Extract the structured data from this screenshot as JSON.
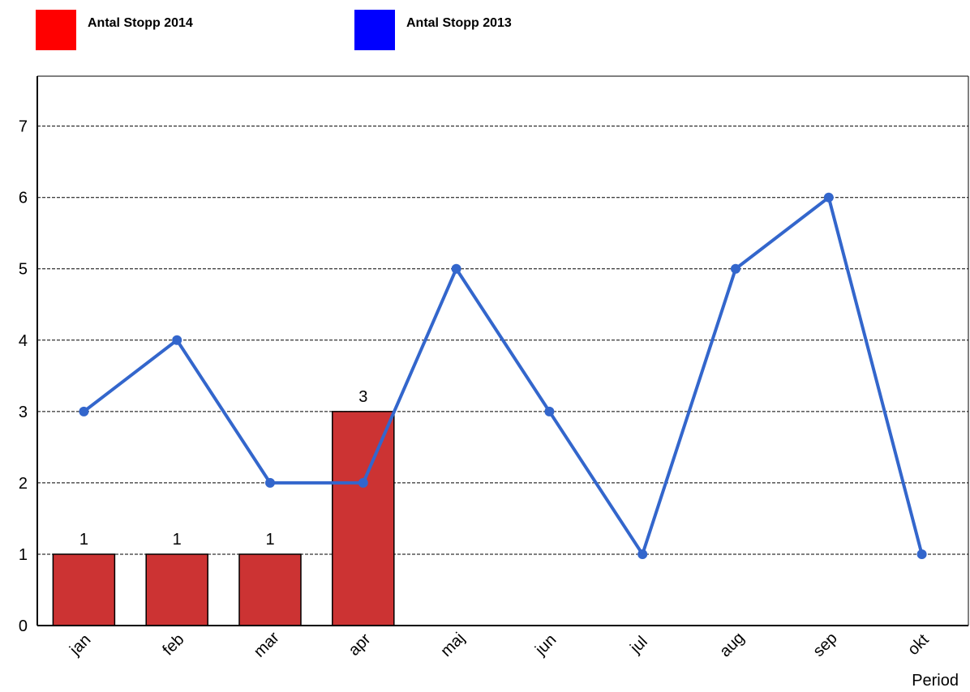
{
  "legend": {
    "items": [
      {
        "label": "Antal Stopp 2014",
        "color": "#ff0000"
      },
      {
        "label": "Antal Stopp 2013",
        "color": "#0000ff"
      }
    ]
  },
  "chart_data": {
    "type": "bar",
    "categories": [
      "jan",
      "feb",
      "mar",
      "apr",
      "maj",
      "jun",
      "jul",
      "aug",
      "sep",
      "okt"
    ],
    "series": [
      {
        "name": "Antal Stopp 2014",
        "type": "bar",
        "color": "#cc3333",
        "values": [
          1,
          1,
          1,
          3,
          null,
          null,
          null,
          null,
          null,
          null
        ]
      },
      {
        "name": "Antal Stopp 2013",
        "type": "line",
        "color": "#3366cc",
        "values": [
          3,
          4,
          2,
          2,
          5,
          3,
          1,
          5,
          6,
          1
        ]
      }
    ],
    "xlabel": "Period",
    "ylabel": "",
    "ylim": [
      0,
      7.7
    ],
    "yticks": [
      0,
      1,
      2,
      3,
      4,
      5,
      6,
      7
    ],
    "grid": true,
    "legend_position": "top-left"
  }
}
